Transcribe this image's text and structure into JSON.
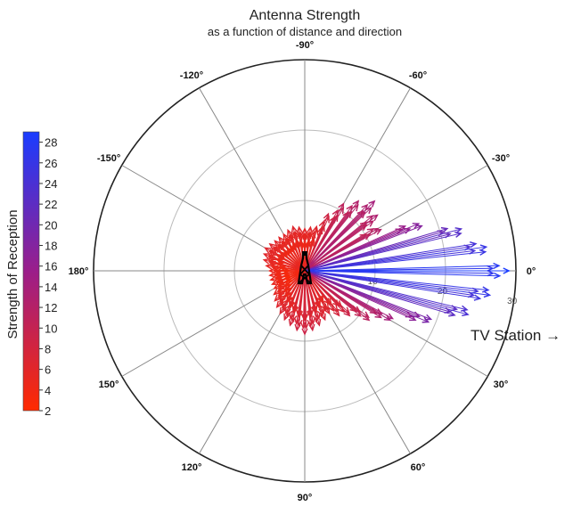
{
  "chart_data": {
    "type": "polar-vector",
    "title": "Antenna Strength",
    "subtitle": "as a function of distance and direction",
    "angle_labels": [
      "0°",
      "30°",
      "60°",
      "90°",
      "120°",
      "150°",
      "180°",
      "-150°",
      "-120°",
      "-90°",
      "-60°",
      "-30°"
    ],
    "angle_values": [
      0,
      30,
      60,
      90,
      120,
      150,
      180,
      -150,
      -120,
      -90,
      -60,
      -30
    ],
    "radial_ticks": [
      "10",
      "20",
      "30"
    ],
    "radial_values": [
      10,
      20,
      30
    ],
    "r_max": 30,
    "colorbar": {
      "label": "Strength of Reception",
      "min": 2,
      "max": 29,
      "ticks": [
        "2",
        "4",
        "6",
        "8",
        "10",
        "12",
        "14",
        "16",
        "18",
        "20",
        "22",
        "24",
        "26",
        "28"
      ],
      "tick_values": [
        2,
        4,
        6,
        8,
        10,
        12,
        14,
        16,
        18,
        20,
        22,
        24,
        26,
        28
      ],
      "color_low": "#ff2a00",
      "color_mid": "#9b1e8a",
      "color_high": "#1a3cff"
    },
    "annotation": "TV Station →",
    "center_icon": "transmission-tower-icon",
    "vectors_strength_at_tip_by_direction": [
      {
        "direction": -180,
        "strength": 5
      },
      {
        "direction": -165,
        "strength": 6
      },
      {
        "direction": -150,
        "strength": 6.5
      },
      {
        "direction": -135,
        "strength": 6
      },
      {
        "direction": -120,
        "strength": 6
      },
      {
        "direction": -105,
        "strength": 6.5
      },
      {
        "direction": -90,
        "strength": 6
      },
      {
        "direction": -75,
        "strength": 6.5
      },
      {
        "direction": -60,
        "strength": 11
      },
      {
        "direction": -45,
        "strength": 14
      },
      {
        "direction": -30,
        "strength": 12
      },
      {
        "direction": -15,
        "strength": 23
      },
      {
        "direction": 0,
        "strength": 29
      },
      {
        "direction": 15,
        "strength": 24
      },
      {
        "direction": 30,
        "strength": 14
      },
      {
        "direction": 45,
        "strength": 9
      },
      {
        "direction": 60,
        "strength": 7
      },
      {
        "direction": 75,
        "strength": 8
      },
      {
        "direction": 90,
        "strength": 9
      },
      {
        "direction": 105,
        "strength": 8
      },
      {
        "direction": 120,
        "strength": 7
      },
      {
        "direction": 135,
        "strength": 6
      },
      {
        "direction": 150,
        "strength": 5
      },
      {
        "direction": 165,
        "strength": 5
      }
    ]
  }
}
